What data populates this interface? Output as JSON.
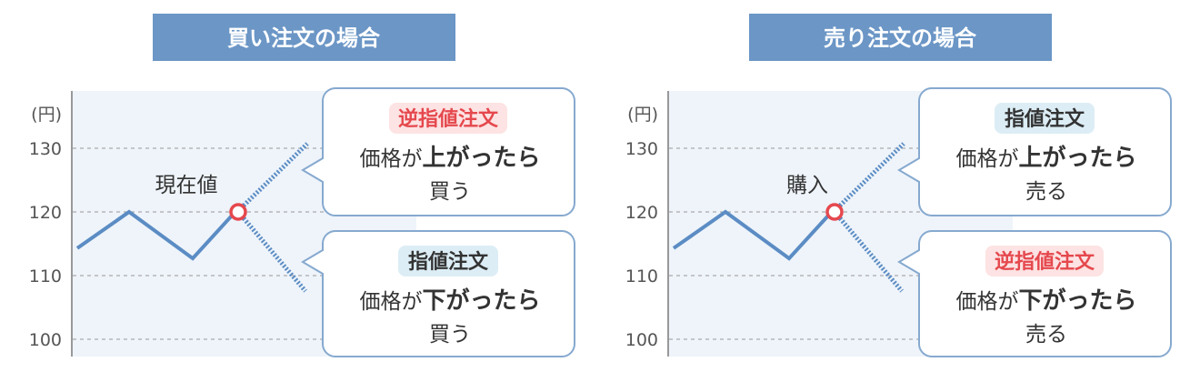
{
  "panels": [
    {
      "title": "買い注文の場合",
      "unit": "(円)",
      "ticks": [
        "130",
        "120",
        "110",
        "100"
      ],
      "marker_label": "現在値",
      "callouts": [
        {
          "badge": "逆指値注文",
          "badge_type": "stop",
          "line_a": "価格が",
          "line_b": "上がったら",
          "action": "買う"
        },
        {
          "badge": "指値注文",
          "badge_type": "limit",
          "line_a": "価格が",
          "line_b": "下がったら",
          "action": "買う"
        }
      ]
    },
    {
      "title": "売り注文の場合",
      "unit": "(円)",
      "ticks": [
        "130",
        "120",
        "110",
        "100"
      ],
      "marker_label": "購入",
      "callouts": [
        {
          "badge": "指値注文",
          "badge_type": "limit",
          "line_a": "価格が",
          "line_b": "上がったら",
          "action": "売る"
        },
        {
          "badge": "逆指値注文",
          "badge_type": "stop",
          "line_a": "価格が",
          "line_b": "下がったら",
          "action": "売る"
        }
      ]
    }
  ],
  "colors": {
    "header": "#6b96c6",
    "line": "#5b8cc4",
    "marker": "#e5484d",
    "stop_text": "#e5484d",
    "stop_bg": "#fde3e3",
    "limit_text": "#333333",
    "limit_bg": "#dcedf5",
    "border": "#86a9cf",
    "plot_bg": "#eef4fa"
  }
}
